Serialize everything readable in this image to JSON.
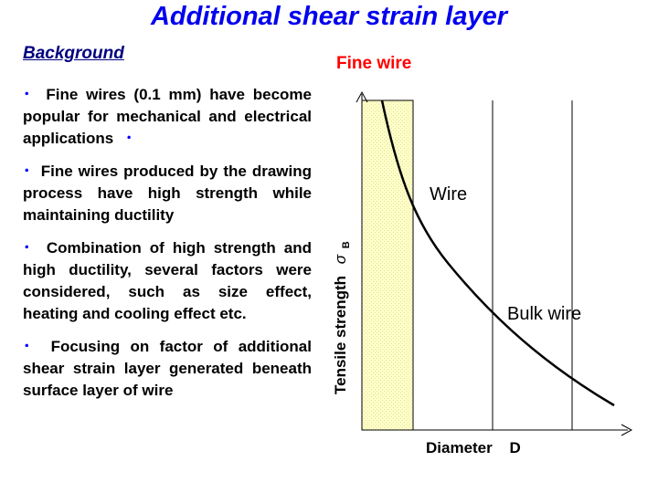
{
  "title": "Additional shear strain layer",
  "subtitle": "Background",
  "bullets": [
    {
      "marker": "･",
      "text": "Fine wires (0.1 mm) have become popular for mechanical and electrical applications",
      "end_marker": "･"
    },
    {
      "marker": "･",
      "text": "Fine wires produced by the drawing process have high strength while maintaining ductility"
    },
    {
      "marker": "･",
      "text": "Combination of high strength and high ductility, several factors were considered, such as size effect, heating and cooling effect etc."
    },
    {
      "marker": "･",
      "text": "Focusing on factor of additional shear strain layer generated beneath surface layer of wire"
    }
  ],
  "diagram": {
    "fine_wire_label": "Fine wire",
    "wire_label": "Wire",
    "bulk_wire_label": "Bulk wire",
    "y_axis_label": "Tensile strength",
    "y_axis_symbol": "σ",
    "y_axis_subscript": "B",
    "x_axis_label": "Diameter",
    "x_axis_symbol": "D",
    "colors": {
      "fine_wire_label": "#ff0000",
      "fine_wire_region": "#ffffc0",
      "curve": "#000000"
    }
  }
}
